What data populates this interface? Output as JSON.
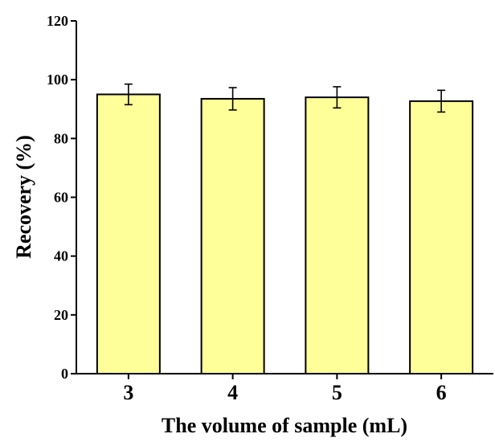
{
  "chart_data": {
    "type": "bar",
    "categories": [
      "3",
      "4",
      "5",
      "6"
    ],
    "values": [
      95,
      93.5,
      94,
      92.7
    ],
    "errors": [
      3.5,
      3.8,
      3.6,
      3.7
    ],
    "xlabel": "The volume of sample (mL)",
    "ylabel": "Recovery (%)",
    "ylim": [
      0,
      120
    ],
    "yticks": [
      "0",
      "20",
      "40",
      "60",
      "80",
      "100",
      "120"
    ],
    "grid": false,
    "legend": "none",
    "bar_color": "#ffff99",
    "bar_edge_color": "#000000"
  }
}
